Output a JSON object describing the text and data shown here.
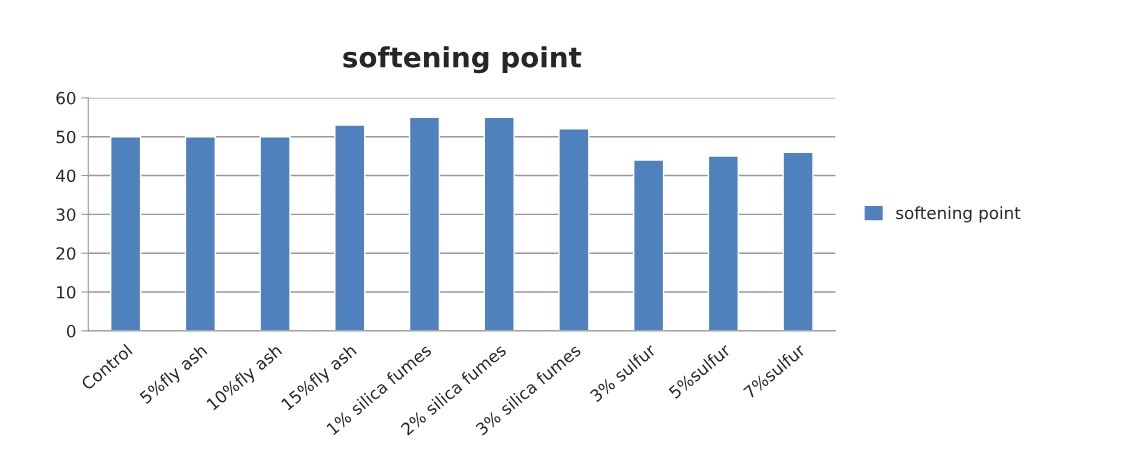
{
  "chart_data": {
    "type": "bar",
    "title": "softening point",
    "categories": [
      "Control",
      "5%fly ash",
      "10%fly ash",
      "15%fly ash",
      "1% silica fumes",
      "2% silica fumes",
      "3% silica fumes",
      "3% sulfur",
      "5%sulfur",
      "7%sulfur"
    ],
    "series": [
      {
        "name": "softening point",
        "color": "#4f81bd",
        "values": [
          50,
          50,
          50,
          53,
          55,
          55,
          52,
          44,
          45,
          46
        ]
      }
    ],
    "ylim": [
      0,
      60
    ],
    "yticks": [
      0,
      10,
      20,
      30,
      40,
      50,
      60
    ],
    "grid": "y",
    "legend": "right"
  }
}
